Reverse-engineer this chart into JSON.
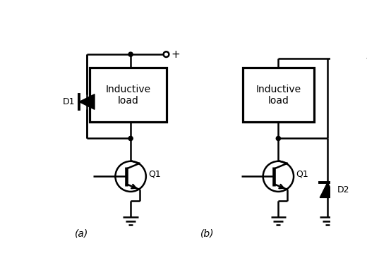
{
  "bg_color": "#ffffff",
  "line_color": "#000000",
  "lw": 1.8,
  "label_a": "(a)",
  "label_b": "(b)",
  "label_D1": "D1",
  "label_D2": "D2",
  "label_Q1": "Q1",
  "label_load": "Inductive\nload",
  "label_plus": "+",
  "fig_width": 5.2,
  "fig_height": 3.86,
  "dpi": 100
}
